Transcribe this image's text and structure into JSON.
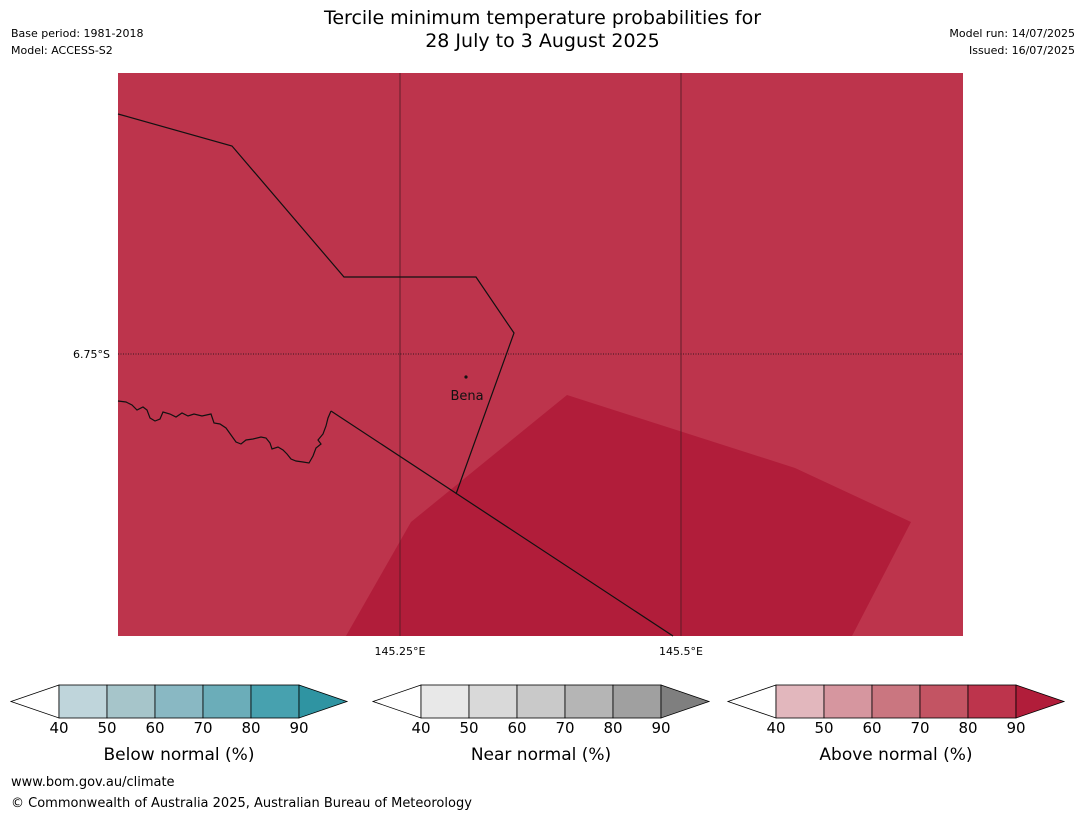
{
  "meta": {
    "base_period": "Base period: 1981-2018",
    "model": "Model: ACCESS-S2",
    "model_run": "Model run: 14/07/2025",
    "issued": "Issued: 16/07/2025"
  },
  "title": {
    "line1": "Tercile minimum temperature probabilities for",
    "line2": "28 July to 3 August 2025"
  },
  "map": {
    "lat_label": "6.75°S",
    "lon_labels": [
      "145.25°E",
      "145.5°E"
    ],
    "place": "Bena",
    "colors": {
      "background": "#bd344c",
      "high_zone": "#b11d3a",
      "border": "#111111",
      "gridline": "#4a1a22"
    }
  },
  "legends": [
    {
      "label": "Below normal (%)",
      "ticks": [
        "40",
        "50",
        "60",
        "70",
        "80",
        "90"
      ],
      "colors": [
        "#ffffff",
        "#bfd5db",
        "#a6c5ca",
        "#89b8c3",
        "#6badb9",
        "#47a1af",
        "#2f94a2"
      ]
    },
    {
      "label": "Near normal (%)",
      "ticks": [
        "40",
        "50",
        "60",
        "70",
        "80",
        "90"
      ],
      "colors": [
        "#ffffff",
        "#e8e8e8",
        "#d9d9d9",
        "#c9c9c9",
        "#b5b5b5",
        "#a0a0a0",
        "#7f7f7f"
      ]
    },
    {
      "label": "Above normal (%)",
      "ticks": [
        "40",
        "50",
        "60",
        "70",
        "80",
        "90"
      ],
      "colors": [
        "#ffffff",
        "#e2b7bd",
        "#d6969f",
        "#ca7680",
        "#c35463",
        "#bd344c",
        "#b11d3a"
      ]
    }
  ],
  "footer": {
    "website": "www.bom.gov.au/climate",
    "copyright": "© Commonwealth of Australia 2025, Australian Bureau of Meteorology"
  }
}
